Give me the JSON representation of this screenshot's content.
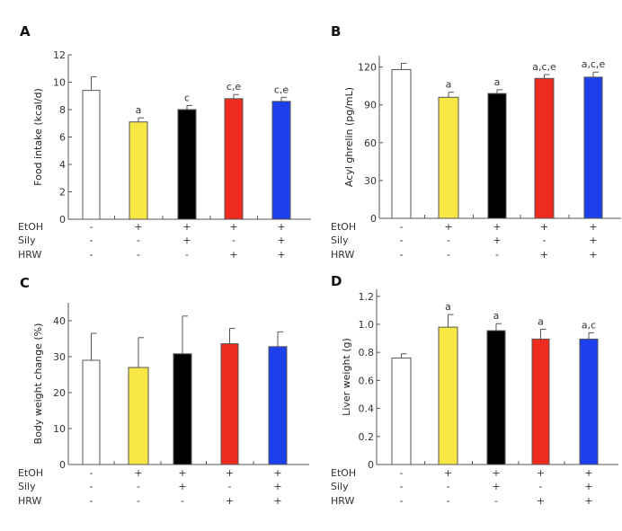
{
  "chart_data": [
    {
      "panel": "A",
      "type": "bar",
      "ylabel": "Food intake (kcal/d)",
      "ylim": [
        0,
        12
      ],
      "yticks": [
        0,
        2,
        4,
        6,
        8,
        10,
        12
      ],
      "categories": [
        "1",
        "2",
        "3",
        "4",
        "5"
      ],
      "values": [
        9.4,
        7.1,
        8.0,
        8.8,
        8.6
      ],
      "errors": [
        1.0,
        0.3,
        0.3,
        0.3,
        0.3
      ],
      "significance": [
        "",
        "a",
        "c",
        "c,e",
        "c,e"
      ]
    },
    {
      "panel": "B",
      "type": "bar",
      "ylabel": "Acyl ghrelin (pg/mL)",
      "ylim": [
        0,
        129
      ],
      "yticks": [
        0,
        30,
        60,
        90,
        120
      ],
      "categories": [
        "1",
        "2",
        "3",
        "4",
        "5"
      ],
      "values": [
        118,
        96,
        99,
        111,
        112
      ],
      "errors": [
        5,
        4,
        3,
        3,
        4
      ],
      "significance": [
        "",
        "a",
        "a",
        "a,c,e",
        "a,c,e"
      ]
    },
    {
      "panel": "C",
      "type": "bar",
      "ylabel": "Body weight change (%)",
      "ylim": [
        0,
        45
      ],
      "yticks": [
        0,
        10,
        20,
        30,
        40
      ],
      "categories": [
        "1",
        "2",
        "3",
        "4",
        "5"
      ],
      "values": [
        29.0,
        27.0,
        30.8,
        33.6,
        32.8
      ],
      "errors": [
        7.5,
        8.3,
        10.5,
        4.3,
        4.1
      ],
      "significance": [
        "",
        "",
        "",
        "",
        ""
      ]
    },
    {
      "panel": "D",
      "type": "bar",
      "ylabel": "Liver weight (g)",
      "ylim": [
        0,
        1.25
      ],
      "yticks": [
        "0",
        "0.2",
        "0.4",
        "0.6",
        "0.8",
        "1.0",
        "1.2"
      ],
      "categories": [
        "1",
        "2",
        "3",
        "4",
        "5"
      ],
      "values": [
        0.76,
        0.98,
        0.955,
        0.895,
        0.895
      ],
      "errors": [
        0.03,
        0.09,
        0.05,
        0.07,
        0.045
      ],
      "significance": [
        "",
        "a",
        "a",
        "a",
        "a,c"
      ]
    }
  ],
  "treatments": [
    {
      "label": "EtOH",
      "marks": [
        "-",
        "+",
        "+",
        "+",
        "+"
      ]
    },
    {
      "label": "Sily",
      "marks": [
        "-",
        "-",
        "+",
        "-",
        "+"
      ]
    },
    {
      "label": "HRW",
      "marks": [
        "-",
        "-",
        "-",
        "+",
        "+"
      ]
    }
  ],
  "colors": [
    "#ffffff",
    "#f7e845",
    "#000000",
    "#ee2b1f",
    "#1e40ea"
  ],
  "bar_outline": "#555555"
}
